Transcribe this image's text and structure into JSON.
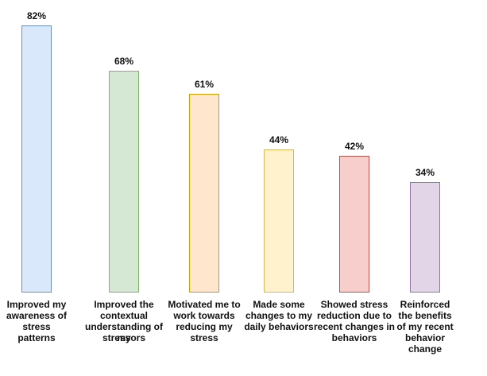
{
  "chart_data": {
    "type": "bar",
    "title": "",
    "xlabel": "",
    "ylabel": "",
    "ylim": [
      0,
      100
    ],
    "grid": false,
    "categories": [
      "Improved my awareness of stress patterns",
      "Improved the contextual understanding of my stressors",
      "Motivated me to work towards reducing my stress",
      "Made some changes to my daily behaviors",
      "Showed stress reduction due to recent changes in behaviors",
      "Reinforced the benefits of my recent behavior change"
    ],
    "category_lines": [
      [
        "Improved my",
        "awareness of",
        "stress",
        "patterns"
      ],
      [
        "Improved the",
        "contextual",
        "understanding of my",
        "stressors"
      ],
      [
        "Motivated me to",
        "work towards",
        "reducing my",
        "stress"
      ],
      [
        "Made some",
        "changes to my",
        "daily behaviors"
      ],
      [
        "Showed stress",
        "reduction due to",
        "recent changes in",
        "behaviors"
      ],
      [
        "Reinforced",
        "the benefits",
        "of my recent",
        "behavior",
        "change"
      ]
    ],
    "values": [
      82,
      68,
      61,
      44,
      42,
      34
    ],
    "value_labels": [
      "82%",
      "68%",
      "61%",
      "44%",
      "42%",
      "34%"
    ],
    "colors": [
      {
        "fill": "#dae8fc",
        "stroke": "#6c8ebf"
      },
      {
        "fill": "#d5e8d4",
        "stroke": "#82b366"
      },
      {
        "fill": "#ffe6cc",
        "stroke": "#d79b00"
      },
      {
        "fill": "#fff2cc",
        "stroke": "#d6b656"
      },
      {
        "fill": "#f8cecc",
        "stroke": "#b85450"
      },
      {
        "fill": "#e1d5e7",
        "stroke": "#9673a6"
      }
    ]
  }
}
